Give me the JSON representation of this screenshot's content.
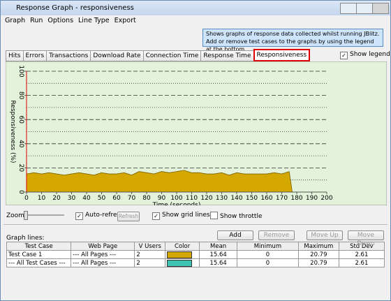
{
  "window": {
    "title": "Response Graph - responsiveness"
  },
  "menu": [
    "Graph",
    "Run",
    "Options",
    "Line Type",
    "Export"
  ],
  "info": "Shows graphs of response data collected whilst running JBlitz. Add or remove test cases to the graphs by using the legend at the bottom",
  "tabs": [
    "Hits",
    "Errors",
    "Transactions",
    "Download Rate",
    "Connection Time",
    "Response Time",
    "Responsiveness"
  ],
  "selected_tab": 6,
  "show_legend": {
    "label": "Show legend",
    "checked": true
  },
  "chart_data": {
    "type": "area",
    "x_label": "Time (seconds)",
    "y_label": "Responsiveness (%)",
    "xlim": [
      0,
      200
    ],
    "ylim": [
      0,
      100
    ],
    "xticks": [
      0,
      10,
      20,
      30,
      40,
      50,
      60,
      70,
      80,
      90,
      100,
      110,
      120,
      130,
      140,
      150,
      160,
      170,
      180,
      190,
      200
    ],
    "yticks": [
      0,
      20,
      40,
      60,
      80,
      100
    ],
    "minor_yticks": [
      10,
      30,
      50,
      70,
      90
    ],
    "grid": true,
    "series": [
      {
        "color": "#d4a800",
        "x": [
          0,
          5,
          10,
          15,
          20,
          25,
          30,
          35,
          40,
          45,
          50,
          55,
          60,
          65,
          70,
          75,
          80,
          85,
          90,
          95,
          100,
          105,
          110,
          115,
          120,
          125,
          130,
          135,
          140,
          145,
          150,
          155,
          160,
          165,
          170,
          175,
          177
        ],
        "values": [
          15,
          16,
          15,
          16,
          15,
          14,
          15,
          16,
          15,
          14,
          16,
          15,
          15,
          16,
          14,
          17,
          16,
          15,
          17,
          16,
          17,
          18,
          16,
          16,
          15,
          15,
          16,
          14,
          16,
          15,
          15,
          15,
          15,
          16,
          15,
          17,
          0
        ]
      }
    ]
  },
  "controls": {
    "zoom": "Zoom",
    "auto_refresh": {
      "label": "Auto-refresh",
      "checked": true
    },
    "refresh": "Refresh",
    "show_grid_lines": {
      "label": "Show grid lines",
      "checked": true
    },
    "show_throttle": {
      "label": "Show throttle",
      "checked": false
    }
  },
  "graph_lines": {
    "label": "Graph lines:",
    "buttons": [
      "Add",
      "Remove",
      "Move Up",
      "Move Down"
    ],
    "columns": [
      "Test Case",
      "Web Page",
      "V Users",
      "Color",
      "Mean",
      "Minimum",
      "Maximum",
      "Std Dev"
    ],
    "rows": [
      {
        "test_case": "Test Case 1",
        "web_page": "--- All Pages ---",
        "v_users": 2,
        "color": "#d4a800",
        "mean": 15.64,
        "minimum": 0,
        "maximum": 20.79,
        "std_dev": 2.61
      },
      {
        "test_case": "--- All Test Cases ---",
        "web_page": "--- All Pages ---",
        "v_users": 2,
        "color": "#3fc4b4",
        "mean": 15.64,
        "minimum": 0,
        "maximum": 20.79,
        "std_dev": 2.61
      }
    ]
  }
}
